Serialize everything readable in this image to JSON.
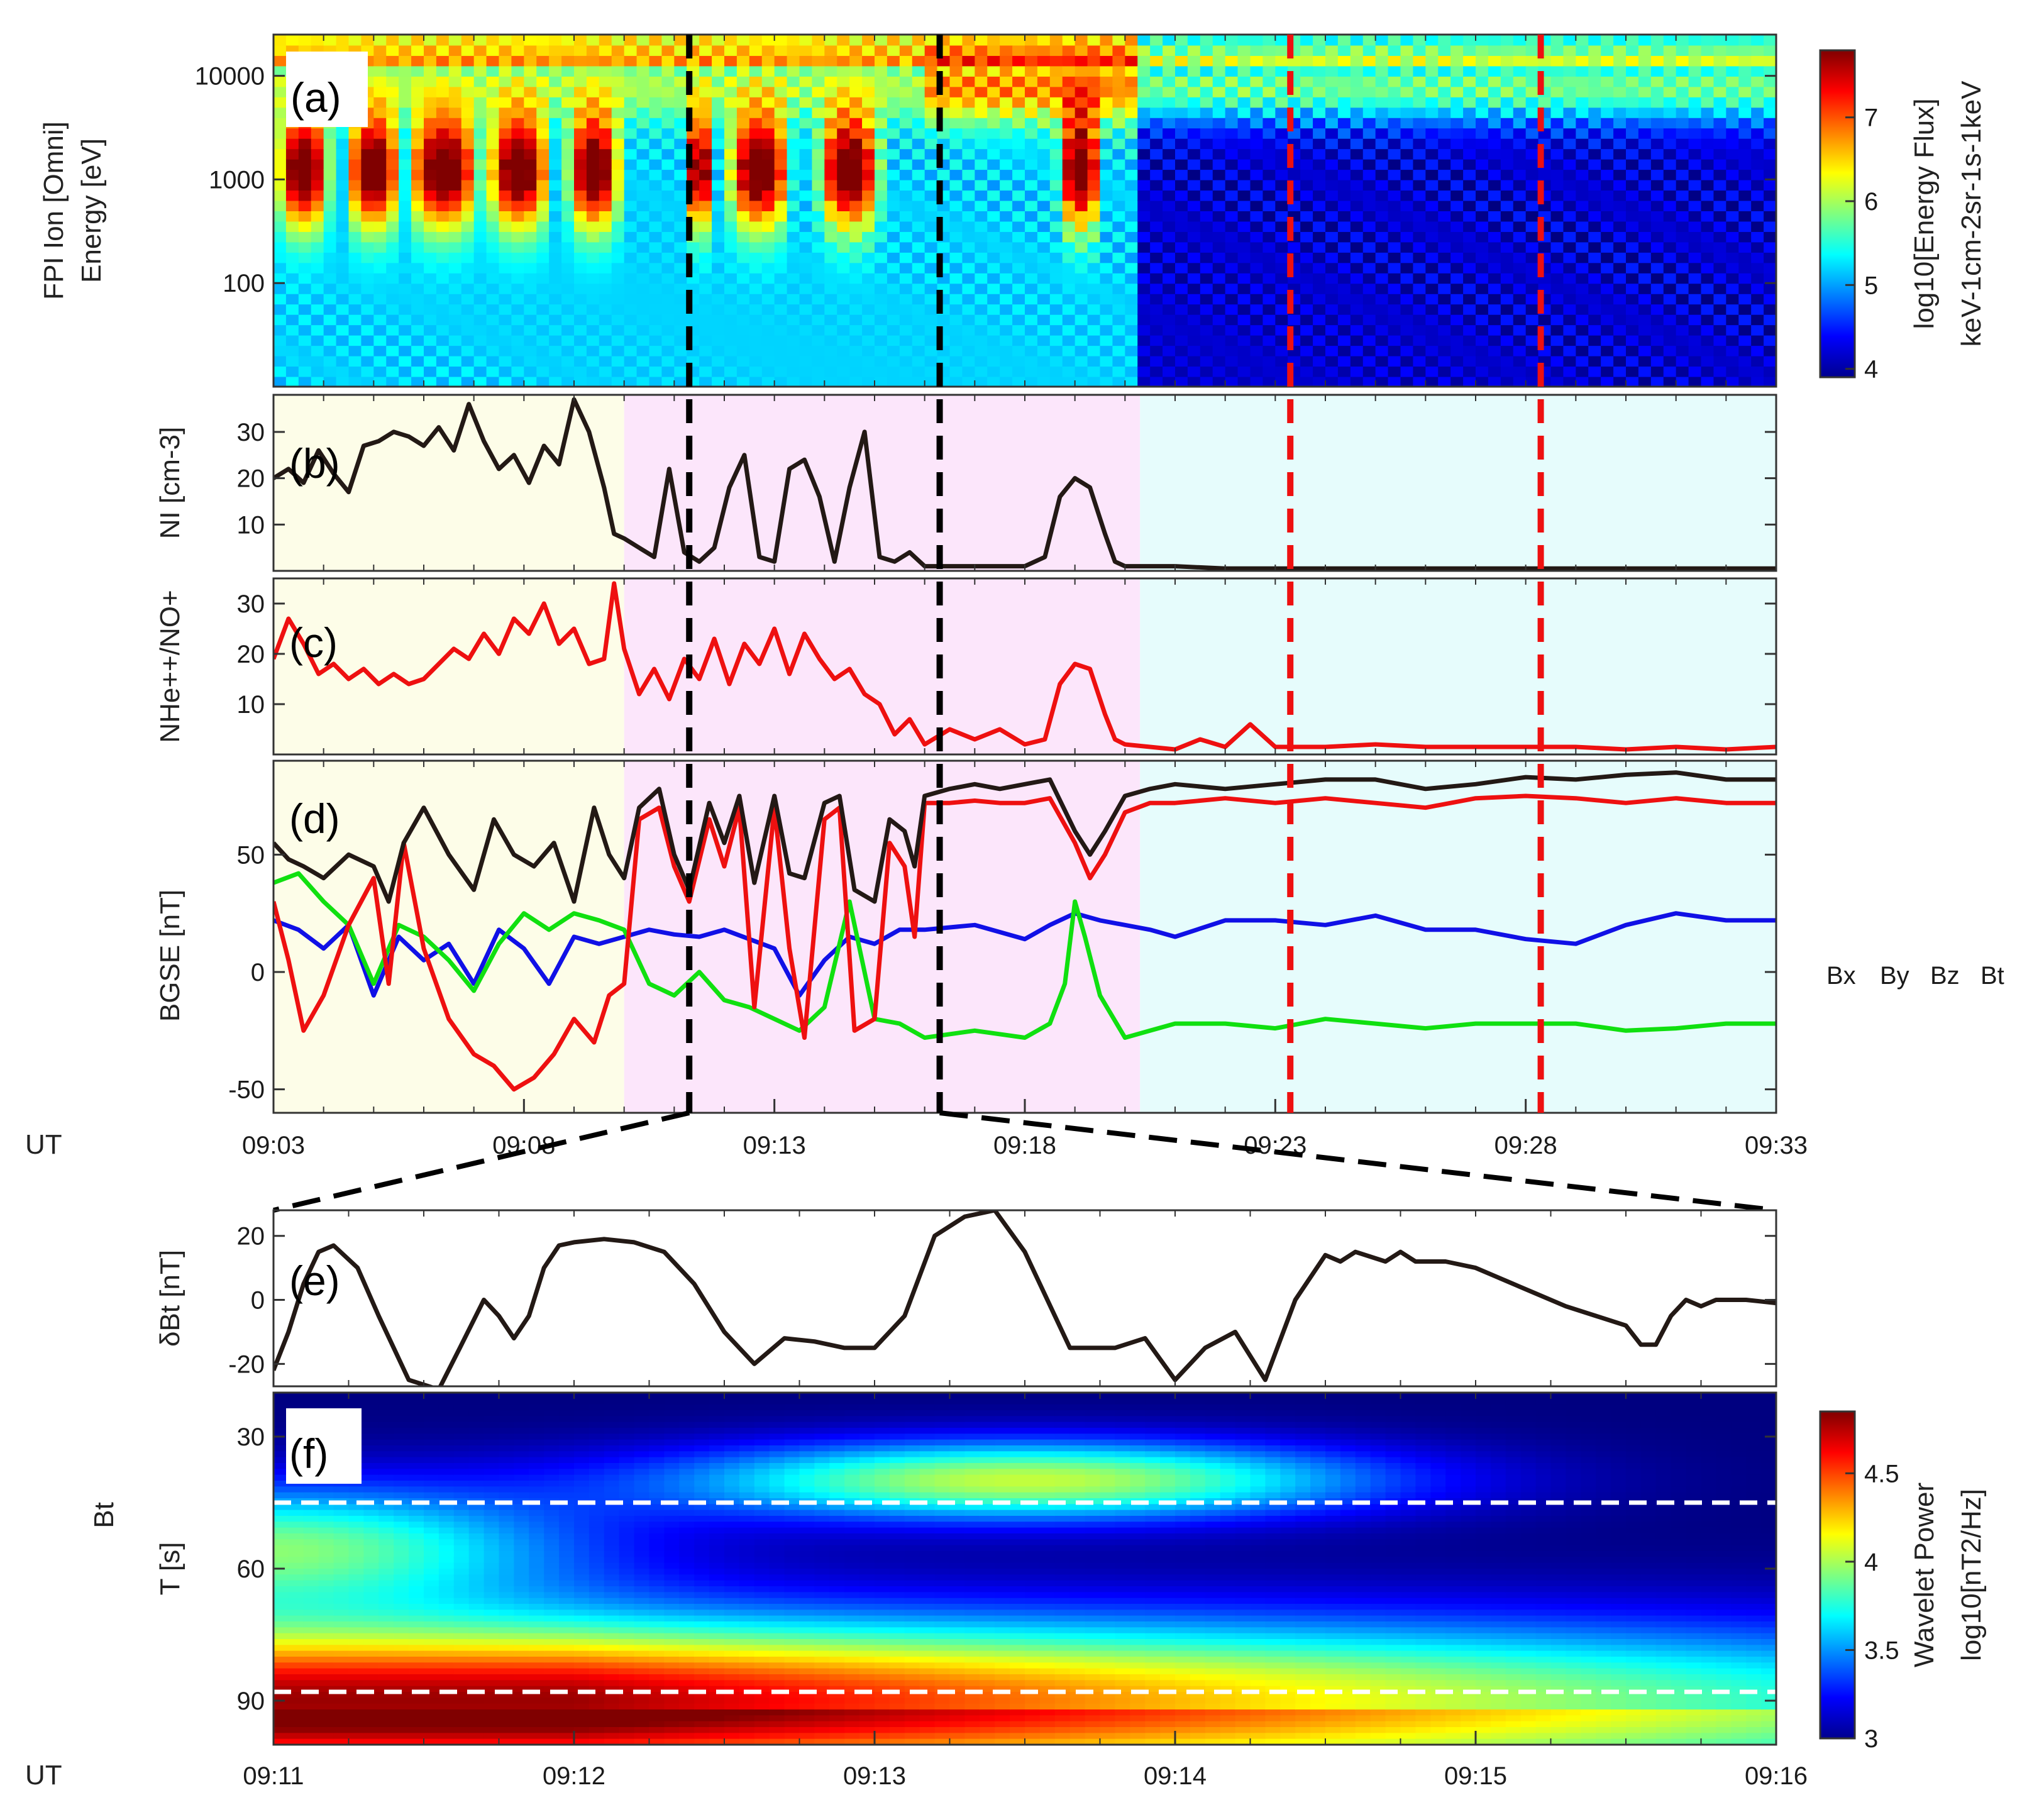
{
  "figure": {
    "ut_label": "UT",
    "colors": {
      "bx": "#1010e6",
      "by": "#10e010",
      "bz": "#ee1010",
      "bt": "#231915",
      "ni": "#231915",
      "ratio": "#ee1010",
      "dbt": "#231915",
      "shade_a": "#fdfde8",
      "shade_b": "#fce6fb",
      "shade_c": "#e6fcfc",
      "black_dash": "#000000",
      "red_dash": "#ee1010",
      "white_dash": "#ffffff"
    }
  },
  "chart_data": [
    {
      "id": "a",
      "type": "heatmap",
      "panel_label": "(a)",
      "ylabel_line1": "FPI Ion [Omni]",
      "ylabel_line2": "Energy [eV]",
      "x_range_min": [
        3,
        33
      ],
      "y_log_range": [
        10,
        25000
      ],
      "y_ticks": [
        100,
        1000,
        10000
      ],
      "y_tick_labels": [
        "100",
        "1000",
        "10000"
      ],
      "colorbar": {
        "title": "log10[Energy Flux]",
        "units": "keV-1cm-2sr-1s-1keV",
        "range": [
          3.9,
          7.8
        ],
        "ticks": [
          4,
          5,
          6,
          7
        ],
        "tick_labels": [
          "4",
          "5",
          "6",
          "7"
        ]
      },
      "hot_intervals_min": [
        [
          3.0,
          4.2
        ],
        [
          4.4,
          5.6
        ],
        [
          5.6,
          7.2
        ],
        [
          7.2,
          8.6
        ],
        [
          8.8,
          10.0
        ],
        [
          11.2,
          11.8
        ],
        [
          12.0,
          13.4
        ],
        [
          13.8,
          15.2
        ],
        [
          18.6,
          19.6
        ]
      ],
      "hot_energy_keV": [
        0.3,
        8
      ]
    },
    {
      "id": "b",
      "type": "line",
      "panel_label": "(b)",
      "ylabel": "NI [cm-3]",
      "ylim": [
        0,
        38
      ],
      "yticks": [
        10,
        20,
        30
      ],
      "ytick_labels": [
        "10",
        "20",
        "30"
      ],
      "series": [
        {
          "name": "NI",
          "x": [
            3.0,
            3.3,
            3.6,
            3.9,
            4.2,
            4.5,
            4.8,
            5.1,
            5.4,
            5.7,
            6.0,
            6.3,
            6.6,
            6.9,
            7.2,
            7.5,
            7.8,
            8.1,
            8.4,
            8.7,
            9.0,
            9.3,
            9.6,
            9.8,
            10.0,
            10.3,
            10.6,
            10.9,
            11.2,
            11.5,
            11.8,
            12.1,
            12.4,
            12.7,
            13.0,
            13.3,
            13.6,
            13.9,
            14.2,
            14.5,
            14.8,
            15.1,
            15.4,
            15.7,
            16.0,
            16.5,
            17.0,
            17.5,
            18.0,
            18.4,
            18.7,
            19.0,
            19.3,
            19.6,
            19.8,
            20.0,
            20.5,
            21.0,
            22.0,
            23.0,
            24.0,
            25.0,
            26.0,
            27.0,
            28.0,
            29.0,
            30.0,
            31.0,
            32.0,
            33.0
          ],
          "y": [
            20,
            22,
            19,
            26,
            21,
            17,
            27,
            28,
            30,
            29,
            27,
            31,
            26,
            36,
            28,
            22,
            25,
            19,
            27,
            23,
            37,
            30,
            18,
            8,
            7,
            5,
            3,
            22,
            4,
            2,
            5,
            18,
            25,
            3,
            2,
            22,
            24,
            16,
            2,
            18,
            30,
            3,
            2,
            4,
            1,
            1,
            1,
            1,
            1,
            3,
            16,
            20,
            18,
            8,
            2,
            1,
            1,
            1,
            0.5,
            0.5,
            0.5,
            0.5,
            0.5,
            0.5,
            0.5,
            0.5,
            0.5,
            0.5,
            0.5,
            0.5
          ]
        }
      ]
    },
    {
      "id": "c",
      "type": "line",
      "panel_label": "(c)",
      "ylabel": "NHe++/NO+",
      "ylim": [
        0,
        35
      ],
      "yticks": [
        10,
        20,
        30
      ],
      "ytick_labels": [
        "10",
        "20",
        "30"
      ],
      "series": [
        {
          "name": "NHe++/NO+",
          "x": [
            3.0,
            3.3,
            3.6,
            3.9,
            4.2,
            4.5,
            4.8,
            5.1,
            5.4,
            5.7,
            6.0,
            6.3,
            6.6,
            6.9,
            7.2,
            7.5,
            7.8,
            8.1,
            8.4,
            8.7,
            9.0,
            9.3,
            9.6,
            9.8,
            10.0,
            10.3,
            10.6,
            10.9,
            11.2,
            11.5,
            11.8,
            12.1,
            12.4,
            12.7,
            13.0,
            13.3,
            13.6,
            13.9,
            14.2,
            14.5,
            14.8,
            15.1,
            15.4,
            15.7,
            16.0,
            16.5,
            17.0,
            17.5,
            18.0,
            18.4,
            18.7,
            19.0,
            19.3,
            19.6,
            19.8,
            20.0,
            20.5,
            21.0,
            21.5,
            22.0,
            22.5,
            23.0,
            24.0,
            25.0,
            26.0,
            27.0,
            28.0,
            29.0,
            30.0,
            31.0,
            32.0,
            33.0
          ],
          "y": [
            19,
            27,
            22,
            16,
            18,
            15,
            17,
            14,
            16,
            14,
            15,
            18,
            21,
            19,
            24,
            20,
            27,
            24,
            30,
            22,
            25,
            18,
            19,
            34,
            21,
            12,
            17,
            11,
            19,
            15,
            23,
            14,
            22,
            18,
            25,
            16,
            24,
            19,
            15,
            17,
            12,
            10,
            4,
            7,
            2,
            5,
            3,
            5,
            2,
            3,
            14,
            18,
            17,
            8,
            3,
            2,
            1.5,
            1,
            3,
            1.5,
            6,
            1.5,
            1.5,
            2,
            1.5,
            1.5,
            1.5,
            1.5,
            1,
            1.5,
            1,
            1.5
          ]
        }
      ]
    },
    {
      "id": "d",
      "type": "line",
      "panel_label": "(d)",
      "ylabel": "BGSE [nT]",
      "ylim": [
        -60,
        90
      ],
      "yticks": [
        -50,
        0,
        50
      ],
      "ytick_labels": [
        "-50",
        "0",
        "50"
      ],
      "x_range_min": [
        3,
        33
      ],
      "x_ticks_min": [
        3,
        8,
        13,
        18,
        23,
        28,
        33
      ],
      "x_tick_labels": [
        "09:03",
        "09:08",
        "09:13",
        "09:18",
        "09:23",
        "09:28",
        "09:33"
      ],
      "legend": [
        "Bx",
        "By",
        "Bz",
        "Bt"
      ],
      "series": [
        {
          "name": "Bx",
          "x": [
            3.0,
            3.5,
            4.0,
            4.5,
            5.0,
            5.5,
            6.0,
            6.5,
            7.0,
            7.5,
            8.0,
            8.5,
            9.0,
            9.5,
            10.0,
            10.5,
            11.0,
            11.5,
            12.0,
            12.5,
            13.0,
            13.5,
            14.0,
            14.5,
            15.0,
            15.5,
            16.0,
            17.0,
            18.0,
            18.5,
            19.0,
            19.5,
            20.0,
            20.5,
            21.0,
            22.0,
            23.0,
            24.0,
            25.0,
            26.0,
            27.0,
            28.0,
            29.0,
            30.0,
            31.0,
            32.0,
            33.0
          ],
          "y": [
            22,
            18,
            10,
            20,
            -10,
            15,
            5,
            12,
            -5,
            18,
            10,
            -5,
            15,
            12,
            15,
            18,
            16,
            15,
            18,
            14,
            10,
            -10,
            5,
            15,
            12,
            18,
            18,
            20,
            14,
            20,
            25,
            22,
            20,
            18,
            15,
            22,
            22,
            20,
            24,
            18,
            18,
            14,
            12,
            20,
            25,
            22,
            22
          ]
        },
        {
          "name": "By",
          "x": [
            3.0,
            3.5,
            4.0,
            4.5,
            5.0,
            5.5,
            6.0,
            6.5,
            7.0,
            7.5,
            8.0,
            8.5,
            9.0,
            9.5,
            10.0,
            10.5,
            11.0,
            11.5,
            12.0,
            12.5,
            13.0,
            13.5,
            14.0,
            14.5,
            15.0,
            15.5,
            16.0,
            17.0,
            18.0,
            18.5,
            18.8,
            19.0,
            19.2,
            19.5,
            20.0,
            20.5,
            21.0,
            22.0,
            23.0,
            24.0,
            25.0,
            26.0,
            27.0,
            28.0,
            29.0,
            30.0,
            31.0,
            32.0,
            33.0
          ],
          "y": [
            38,
            42,
            30,
            20,
            -5,
            20,
            15,
            5,
            -8,
            12,
            25,
            18,
            25,
            22,
            18,
            -5,
            -10,
            0,
            -12,
            -15,
            -20,
            -25,
            -15,
            30,
            -20,
            -22,
            -28,
            -25,
            -28,
            -22,
            -5,
            30,
            15,
            -10,
            -28,
            -25,
            -22,
            -22,
            -24,
            -20,
            -22,
            -24,
            -22,
            -22,
            -22,
            -25,
            -24,
            -22,
            -22
          ]
        },
        {
          "name": "Bz",
          "x": [
            3.0,
            3.3,
            3.6,
            4.0,
            4.5,
            5.0,
            5.3,
            5.6,
            6.0,
            6.5,
            7.0,
            7.4,
            7.8,
            8.2,
            8.6,
            9.0,
            9.4,
            9.7,
            10.0,
            10.3,
            10.7,
            11.0,
            11.3,
            11.7,
            12.0,
            12.3,
            12.6,
            13.0,
            13.3,
            13.6,
            14.0,
            14.3,
            14.6,
            15.0,
            15.3,
            15.6,
            15.8,
            16.0,
            16.5,
            17.0,
            17.5,
            18.0,
            18.5,
            19.0,
            19.3,
            19.6,
            20.0,
            20.5,
            21.0,
            22.0,
            23.0,
            24.0,
            25.0,
            26.0,
            27.0,
            28.0,
            29.0,
            30.0,
            31.0,
            32.0,
            33.0
          ],
          "y": [
            30,
            5,
            -25,
            -10,
            20,
            40,
            -5,
            55,
            10,
            -20,
            -35,
            -40,
            -50,
            -45,
            -35,
            -20,
            -30,
            -10,
            -5,
            65,
            70,
            45,
            30,
            65,
            45,
            70,
            -15,
            70,
            10,
            -28,
            65,
            70,
            -25,
            -20,
            55,
            45,
            15,
            72,
            72,
            73,
            72,
            72,
            74,
            55,
            40,
            50,
            68,
            72,
            72,
            74,
            72,
            74,
            72,
            70,
            74,
            75,
            74,
            72,
            74,
            72,
            72
          ]
        },
        {
          "name": "Bt",
          "x": [
            3.0,
            3.3,
            3.6,
            4.0,
            4.5,
            5.0,
            5.3,
            5.6,
            6.0,
            6.5,
            7.0,
            7.4,
            7.8,
            8.2,
            8.6,
            9.0,
            9.4,
            9.7,
            10.0,
            10.3,
            10.7,
            11.0,
            11.3,
            11.7,
            12.0,
            12.3,
            12.6,
            13.0,
            13.3,
            13.6,
            14.0,
            14.3,
            14.6,
            15.0,
            15.3,
            15.6,
            15.8,
            16.0,
            16.5,
            17.0,
            17.5,
            18.0,
            18.5,
            19.0,
            19.3,
            19.6,
            20.0,
            20.5,
            21.0,
            22.0,
            23.0,
            24.0,
            25.0,
            26.0,
            27.0,
            28.0,
            29.0,
            30.0,
            31.0,
            32.0,
            33.0
          ],
          "y": [
            55,
            48,
            45,
            40,
            50,
            45,
            30,
            55,
            70,
            50,
            35,
            65,
            50,
            45,
            55,
            30,
            70,
            50,
            40,
            70,
            78,
            50,
            35,
            72,
            55,
            75,
            38,
            75,
            42,
            40,
            72,
            75,
            35,
            30,
            65,
            60,
            45,
            75,
            78,
            80,
            78,
            80,
            82,
            60,
            50,
            60,
            75,
            78,
            80,
            78,
            80,
            82,
            82,
            78,
            80,
            83,
            82,
            84,
            85,
            82,
            82
          ]
        }
      ]
    },
    {
      "id": "e",
      "type": "line",
      "panel_label": "(e)",
      "ylabel": "δBt [nT]",
      "ylim": [
        -27,
        28
      ],
      "yticks": [
        -20,
        0,
        20
      ],
      "ytick_labels": [
        "-20",
        "0",
        "20"
      ],
      "series": [
        {
          "name": "δBt",
          "x": [
            0,
            0.05,
            0.1,
            0.15,
            0.2,
            0.28,
            0.35,
            0.45,
            0.55,
            0.62,
            0.7,
            0.75,
            0.8,
            0.85,
            0.9,
            0.95,
            1.0,
            1.1,
            1.2,
            1.3,
            1.4,
            1.5,
            1.6,
            1.7,
            1.8,
            1.9,
            2.0,
            2.05,
            2.1,
            2.2,
            2.3,
            2.4,
            2.5,
            2.6,
            2.65,
            2.7,
            2.75,
            2.8,
            2.9,
            3.0,
            3.1,
            3.2,
            3.3,
            3.4,
            3.5,
            3.55,
            3.6,
            3.7,
            3.75,
            3.8,
            3.85,
            3.9,
            4.0,
            4.1,
            4.2,
            4.3,
            4.4,
            4.5,
            4.55,
            4.6,
            4.65,
            4.7,
            4.75,
            4.8,
            4.9,
            5.0
          ],
          "y": [
            -22,
            -10,
            5,
            15,
            17,
            10,
            -5,
            -25,
            -28,
            -15,
            0,
            -5,
            -12,
            -5,
            10,
            17,
            18,
            19,
            18,
            15,
            5,
            -10,
            -20,
            -12,
            -13,
            -15,
            -15,
            -10,
            -5,
            20,
            26,
            28,
            15,
            -5,
            -15,
            -15,
            -15,
            -15,
            -12,
            -25,
            -15,
            -10,
            -25,
            0,
            14,
            12,
            15,
            12,
            15,
            12,
            12,
            12,
            10,
            6,
            2,
            -2,
            -5,
            -8,
            -14,
            -14,
            -5,
            0,
            -2,
            0,
            0,
            -1
          ]
        }
      ]
    },
    {
      "id": "f",
      "type": "heatmap",
      "panel_label": "(f)",
      "ylabel_line1": "Bt",
      "ylabel_line2": "T [s]",
      "y_range_s": [
        20,
        100
      ],
      "y_ticks": [
        30,
        60,
        90
      ],
      "y_tick_labels": [
        "30",
        "60",
        "90"
      ],
      "x_range_s": [
        0,
        300
      ],
      "x_ticks_s": [
        0,
        60,
        120,
        180,
        240,
        300
      ],
      "x_tick_labels": [
        "09:11",
        "09:12",
        "09:13",
        "09:14",
        "09:15",
        "09:16"
      ],
      "dashed_periods_s": [
        45,
        88
      ],
      "colorbar": {
        "title": "Wavelet Power",
        "units": "log10[nT2/Hz]",
        "range": [
          3,
          4.85
        ],
        "ticks": [
          3,
          3.5,
          4,
          4.5
        ],
        "tick_labels": [
          "3",
          "3.5",
          "4",
          "4.5"
        ]
      }
    }
  ],
  "markers": {
    "black_dashed_min": [
      11.3,
      16.3
    ],
    "red_dashed_min": [
      23.3,
      28.3
    ],
    "regions_min": [
      [
        3,
        10
      ],
      [
        10,
        20.3
      ],
      [
        20.3,
        33
      ]
    ],
    "zoom_range_min": [
      11,
      16
    ]
  }
}
